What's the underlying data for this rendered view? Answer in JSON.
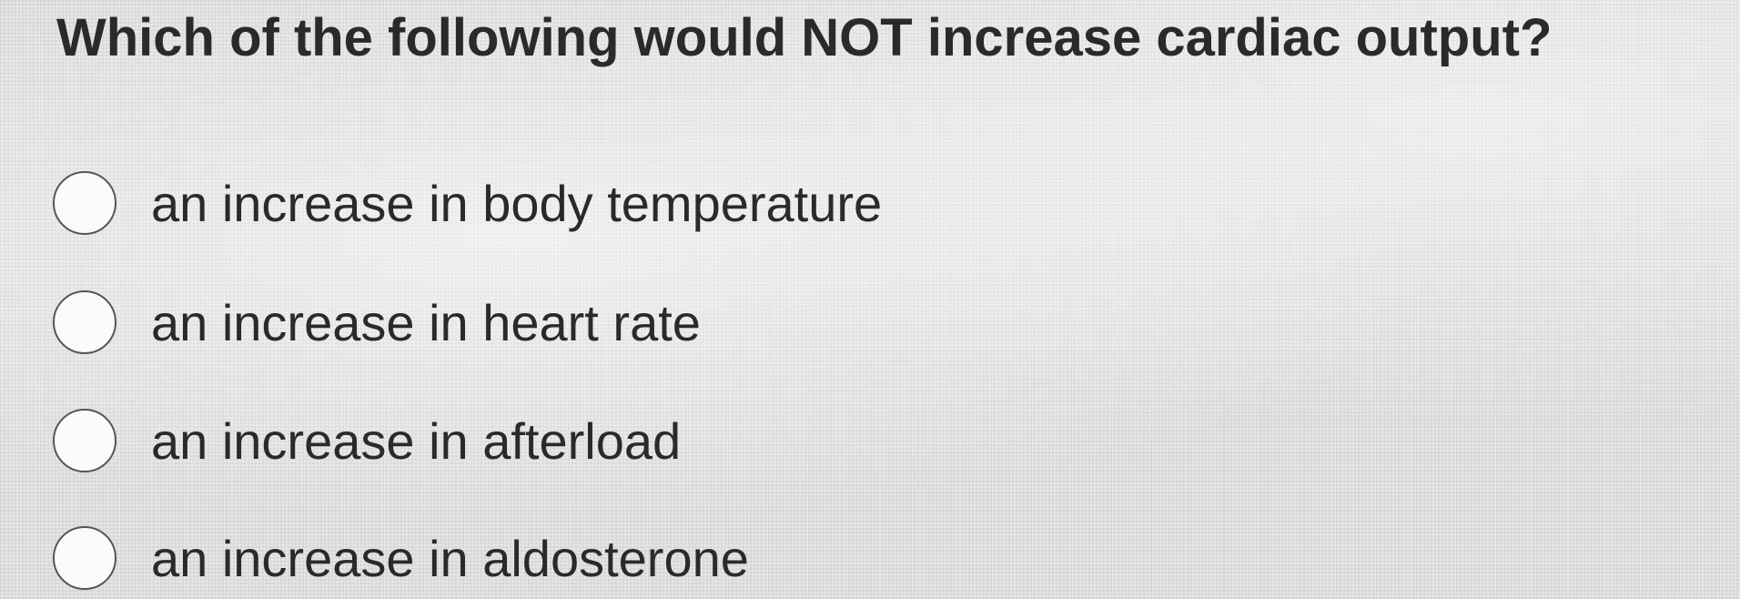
{
  "question": "Which of the following would NOT increase cardiac output?",
  "options": [
    "an increase in body temperature",
    "an increase in heart rate",
    "an increase in afterload",
    "an increase in aldosterone"
  ]
}
